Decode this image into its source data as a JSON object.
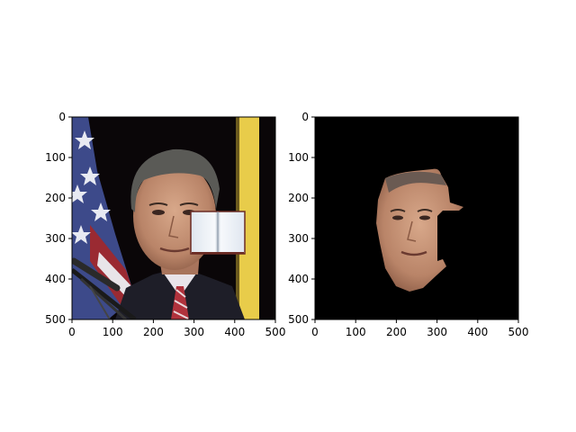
{
  "chart_data": [
    {
      "type": "image",
      "panel": "left",
      "content": "photo of a man in a suit at a podium with a flag; a small open-book graphic overlaid on the right of the face",
      "xlim": [
        0,
        500
      ],
      "ylim": [
        500,
        0
      ],
      "x_ticks": [
        "0",
        "100",
        "200",
        "300",
        "400",
        "500"
      ],
      "y_ticks": [
        "0",
        "100",
        "200",
        "300",
        "400",
        "500"
      ]
    },
    {
      "type": "image",
      "panel": "right",
      "content": "segmented face region of the same man on a black background, with the occluded right part missing",
      "xlim": [
        0,
        500
      ],
      "ylim": [
        500,
        0
      ],
      "x_ticks": [
        "0",
        "100",
        "200",
        "300",
        "400",
        "500"
      ],
      "y_ticks": [
        "0",
        "100",
        "200",
        "300",
        "400",
        "500"
      ]
    }
  ],
  "colors": {
    "background_dark": "#0a0608",
    "skin": "#c9987c",
    "flag_blue": "#3d4a8a",
    "yellow_banner": "#e8cc4a"
  }
}
